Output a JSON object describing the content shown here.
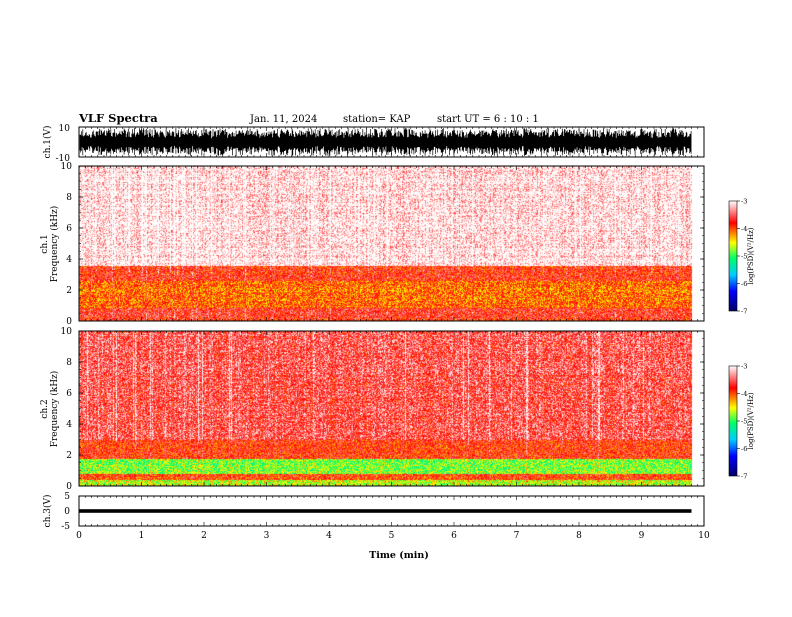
{
  "header": {
    "title": "VLF Spectra",
    "date": "Jan. 11, 2024",
    "station": "station= KAP",
    "start": "start  UT  =   6  : 10 : 1"
  },
  "chart_data": [
    {
      "type": "line",
      "name": "ch1-waveform",
      "ylabel": "ch.1(V)",
      "ylim": [
        -10,
        10
      ],
      "yticks": [
        "10",
        "-10"
      ],
      "xlim": [
        0,
        10
      ],
      "color": "#000000"
    },
    {
      "type": "heatmap",
      "name": "ch1-spectrogram",
      "ylabel_line1": "ch.1",
      "ylabel_line2": "Frequency (kHz)",
      "ylim": [
        0,
        10
      ],
      "yticks": [
        "0",
        "2",
        "4",
        "6",
        "8",
        "10"
      ],
      "xlim": [
        0,
        10
      ],
      "data_end_min": 9.8,
      "bands": [
        {
          "from_khz": 0.0,
          "to_khz": 0.3,
          "level": -3.8
        },
        {
          "from_khz": 0.3,
          "to_khz": 0.9,
          "level": -3.7
        },
        {
          "from_khz": 0.9,
          "to_khz": 2.6,
          "level": -4.1
        },
        {
          "from_khz": 2.6,
          "to_khz": 3.6,
          "level": -3.8
        },
        {
          "from_khz": 3.6,
          "to_khz": 10.0,
          "level": -3.05
        }
      ]
    },
    {
      "type": "heatmap",
      "name": "ch2-spectrogram",
      "ylabel_line1": "ch.2",
      "ylabel_line2": "Frequency (kHz)",
      "ylim": [
        0,
        10
      ],
      "yticks": [
        "0",
        "2",
        "4",
        "6",
        "8",
        "10"
      ],
      "xlim": [
        0,
        10
      ],
      "data_end_min": 9.8,
      "bands": [
        {
          "from_khz": 0.0,
          "to_khz": 0.4,
          "level": -4.6
        },
        {
          "from_khz": 0.4,
          "to_khz": 0.8,
          "level": -3.9
        },
        {
          "from_khz": 0.8,
          "to_khz": 1.8,
          "level": -4.8
        },
        {
          "from_khz": 1.8,
          "to_khz": 3.0,
          "level": -3.85
        },
        {
          "from_khz": 3.0,
          "to_khz": 10.0,
          "level": -3.55
        }
      ]
    },
    {
      "type": "line",
      "name": "ch3-waveform",
      "ylabel": "ch.3(V)",
      "ylim": [
        -5,
        5
      ],
      "yticks": [
        "5",
        "0",
        "-5"
      ],
      "xlim": [
        0,
        10
      ],
      "band_from": -0.6,
      "band_to": 0.6,
      "color": "#000000",
      "xlabel": "Time (min)",
      "xticks": [
        "0",
        "1",
        "2",
        "3",
        "4",
        "5",
        "6",
        "7",
        "8",
        "9",
        "10"
      ]
    }
  ],
  "colorbar": {
    "label": "log(PSD)(V²/Hz)",
    "range": [
      -7,
      -3
    ],
    "ticks": [
      "-3",
      "-4",
      "-5",
      "-6",
      "-7"
    ],
    "colors": [
      "#000066",
      "#0000ff",
      "#00ccff",
      "#00ff66",
      "#ffff00",
      "#ff0000",
      "#ffffff"
    ]
  }
}
